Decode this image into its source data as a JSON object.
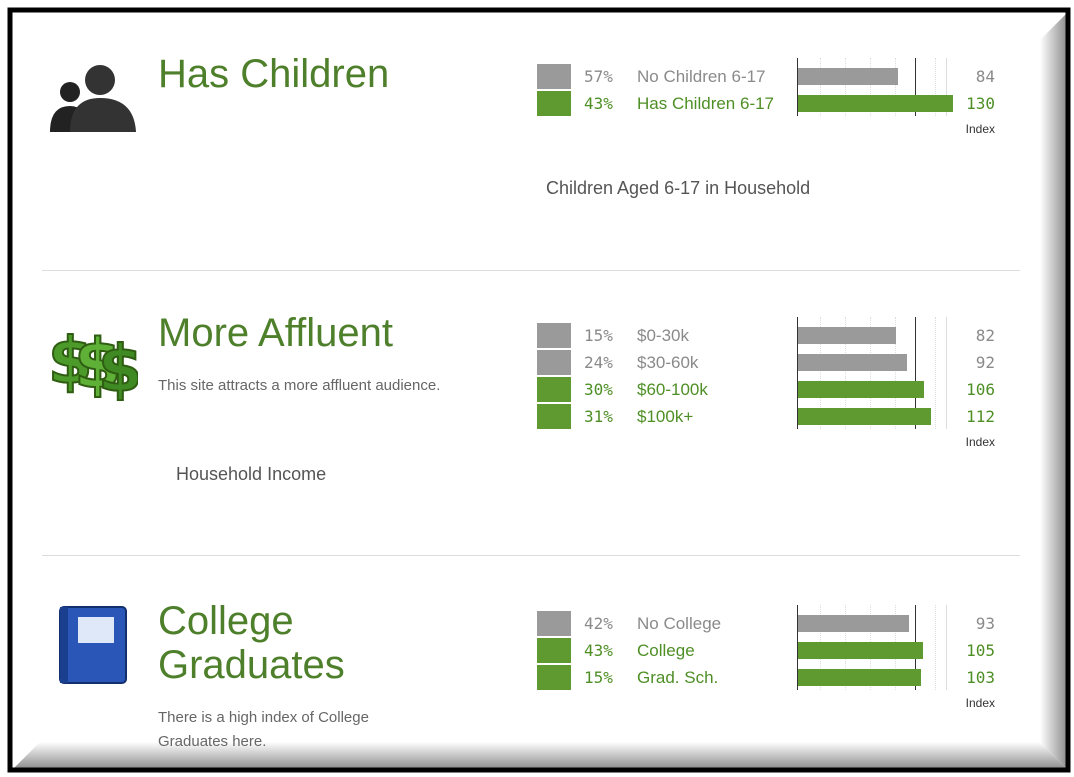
{
  "sections": [
    {
      "title": "Has Children",
      "caption": "Children Aged 6-17 in Household",
      "index_label": "Index",
      "rows": [
        {
          "percent": "57%",
          "label": "No Children 6-17",
          "index": 84,
          "color": "#9a9a9a"
        },
        {
          "percent": "43%",
          "label": "Has Children 6-17",
          "index": 130,
          "color": "#5e9a2f"
        }
      ]
    },
    {
      "title": "More Affluent",
      "description": "This site attracts a more affluent audience.",
      "caption": "Household Income",
      "index_label": "Index",
      "rows": [
        {
          "percent": "15%",
          "label": "$0-30k",
          "index": 82,
          "color": "#9a9a9a"
        },
        {
          "percent": "24%",
          "label": "$30-60k",
          "index": 92,
          "color": "#9a9a9a"
        },
        {
          "percent": "30%",
          "label": "$60-100k",
          "index": 106,
          "color": "#5e9a2f"
        },
        {
          "percent": "31%",
          "label": "$100k+",
          "index": 112,
          "color": "#5e9a2f"
        }
      ]
    },
    {
      "title": "College Graduates",
      "description": "There is a high index of College Graduates here.",
      "index_label": "Index",
      "rows": [
        {
          "percent": "42%",
          "label": "No College",
          "index": 93,
          "color": "#9a9a9a"
        },
        {
          "percent": "43%",
          "label": "College",
          "index": 105,
          "color": "#5e9a2f"
        },
        {
          "percent": "15%",
          "label": "Grad. Sch.",
          "index": 103,
          "color": "#5e9a2f"
        }
      ]
    }
  ]
}
